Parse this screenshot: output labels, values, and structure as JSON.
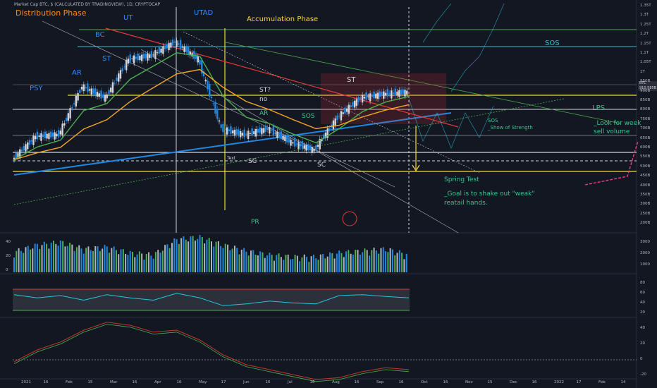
{
  "header": {
    "title": "Market Cap BTC, $ (CALCULATED BY TRADINGVIEW), 1D, CRYPTOCAP"
  },
  "price_tag": {
    "symbol": "BTC",
    "value": "910.585B",
    "countdown": "12:04:53"
  },
  "colors": {
    "background": "#131722",
    "panel_divider": "#2a2e39",
    "label_yellow": "#f5d742",
    "label_blue": "#2f8cff",
    "label_green": "#3ec28f",
    "label_white": "#d1d4dc",
    "label_orange": "#ff8c1a",
    "ema_orange": "#f5a623",
    "ema_green": "#4caf50",
    "line_red": "#e53935",
    "line_blue": "#1e88e5",
    "line_teal": "#26c6da"
  },
  "annotations": [
    {
      "key": "distribution",
      "text": "Distribution Phase",
      "color": "#ff8c1a",
      "size": 11
    },
    {
      "key": "accumulation",
      "text": "Accumulation Phase",
      "color": "#f5d742",
      "size": 10
    },
    {
      "key": "ut",
      "text": "UT",
      "color": "#2f8cff",
      "size": 10
    },
    {
      "key": "utad",
      "text": "UTAD",
      "color": "#2f8cff",
      "size": 10
    },
    {
      "key": "bc",
      "text": "BC",
      "color": "#2f8cff",
      "size": 10
    },
    {
      "key": "st1",
      "text": "ST",
      "color": "#2f8cff",
      "size": 10
    },
    {
      "key": "ar1",
      "text": "AR",
      "color": "#2f8cff",
      "size": 10
    },
    {
      "key": "psy",
      "text": "PSY",
      "color": "#2f8cff",
      "size": 10
    },
    {
      "key": "st2",
      "text": "ST",
      "color": "#d1d4dc",
      "size": 10
    },
    {
      "key": "stq",
      "text": "ST?",
      "color": "#d1d4dc",
      "size": 9
    },
    {
      "key": "no",
      "text": "no",
      "color": "#d1d4dc",
      "size": 9
    },
    {
      "key": "ar2",
      "text": "AR",
      "color": "#3ec28f",
      "size": 9
    },
    {
      "key": "sos1",
      "text": "SOS",
      "color": "#3ec28f",
      "size": 9
    },
    {
      "key": "sc1",
      "text": "SC",
      "color": "#d1d4dc",
      "size": 9
    },
    {
      "key": "sc2",
      "text": "SC",
      "color": "#d1d4dc",
      "size": 9
    },
    {
      "key": "text_small",
      "text": "Text",
      "color": "#d1d4dc",
      "size": 6
    },
    {
      "key": "pr",
      "text": "PR",
      "color": "#3ec28f",
      "size": 9
    },
    {
      "key": "sos_top",
      "text": "SOS",
      "color": "#26c6da",
      "size": 10
    },
    {
      "key": "lps",
      "text": "LPS",
      "color": "#3ec28f",
      "size": 10
    },
    {
      "key": "sos_note",
      "text": "SOS",
      "color": "#3ec28f",
      "size": 7
    },
    {
      "key": "sos_note2",
      "text": "_Show of Strength",
      "color": "#3ec28f",
      "size": 7
    },
    {
      "key": "look1",
      "text": "_Look for week",
      "color": "#3ec28f",
      "size": 9
    },
    {
      "key": "look2",
      "text": "sell volume",
      "color": "#3ec28f",
      "size": 9
    },
    {
      "key": "spring",
      "text": "Spring Test",
      "color": "#3ec28f",
      "size": 9
    },
    {
      "key": "goal1",
      "text": "_Goal is to shake out \"weak\"",
      "color": "#3ec28f",
      "size": 9
    },
    {
      "key": "goal2",
      "text": "reatail hands.",
      "color": "#3ec28f",
      "size": 9
    }
  ],
  "price_axis": [
    "1.35T",
    "1.3T",
    "1.25T",
    "1.2T",
    "1.15T",
    "1.1T",
    "1.05T",
    "1T",
    "950B",
    "900B",
    "850B",
    "800B",
    "750B",
    "700B",
    "650B",
    "600B",
    "550B",
    "500B",
    "450B",
    "400B",
    "350B",
    "300B",
    "250B",
    "200B"
  ],
  "volume_axis": [
    "3000",
    "2000",
    "1000"
  ],
  "rsi_axis": [
    "80",
    "60",
    "40",
    "20"
  ],
  "osc_axis": [
    "40",
    "20",
    "0",
    "-20"
  ],
  "left_axis": [
    "40",
    "20",
    "0"
  ],
  "time_axis": [
    "2021",
    "16",
    "Feb",
    "15",
    "Mar",
    "16",
    "Apr",
    "16",
    "May",
    "17",
    "Jun",
    "16",
    "Jul",
    "16",
    "Aug",
    "16",
    "Sep",
    "16",
    "Oct",
    "16",
    "Nov",
    "15",
    "Dec",
    "16",
    "2022",
    "17",
    "Feb",
    "14"
  ],
  "chart_data": {
    "type": "line",
    "title": "Market Cap BTC, $ (CALCULATED BY TRADINGVIEW), 1D, CRYPTOCAP",
    "x": [
      "2021-01-01",
      "2021-01-16",
      "2021-02-01",
      "2021-02-15",
      "2021-03-01",
      "2021-03-16",
      "2021-04-01",
      "2021-04-16",
      "2021-05-01",
      "2021-05-17",
      "2021-06-01",
      "2021-06-16",
      "2021-07-01",
      "2021-07-16",
      "2021-08-01",
      "2021-08-16",
      "2021-09-01",
      "2021-09-16"
    ],
    "series": [
      {
        "values": [
          560,
          680,
          690,
          940,
          880,
          1080,
          1100,
          1170,
          1080,
          720,
          690,
          720,
          650,
          610,
          780,
          880,
          900,
          910
        ]
      }
    ],
    "ylim": [
      200,
      1350
    ],
    "horizontal_levels": [
      1200,
      1100,
      850,
      790,
      580,
      560,
      480
    ],
    "volume": [
      15,
      22,
      25,
      18,
      20,
      14,
      12,
      28,
      30,
      22,
      16,
      12,
      10,
      10,
      14,
      16,
      18,
      12
    ],
    "rsi": [
      62,
      55,
      60,
      50,
      62,
      55,
      50,
      65,
      55,
      38,
      42,
      48,
      44,
      42,
      60,
      62,
      58,
      55
    ],
    "osc": [
      -2,
      10,
      18,
      30,
      38,
      35,
      28,
      30,
      20,
      5,
      -5,
      -10,
      -15,
      -20,
      -18,
      -12,
      -8,
      -10
    ]
  }
}
